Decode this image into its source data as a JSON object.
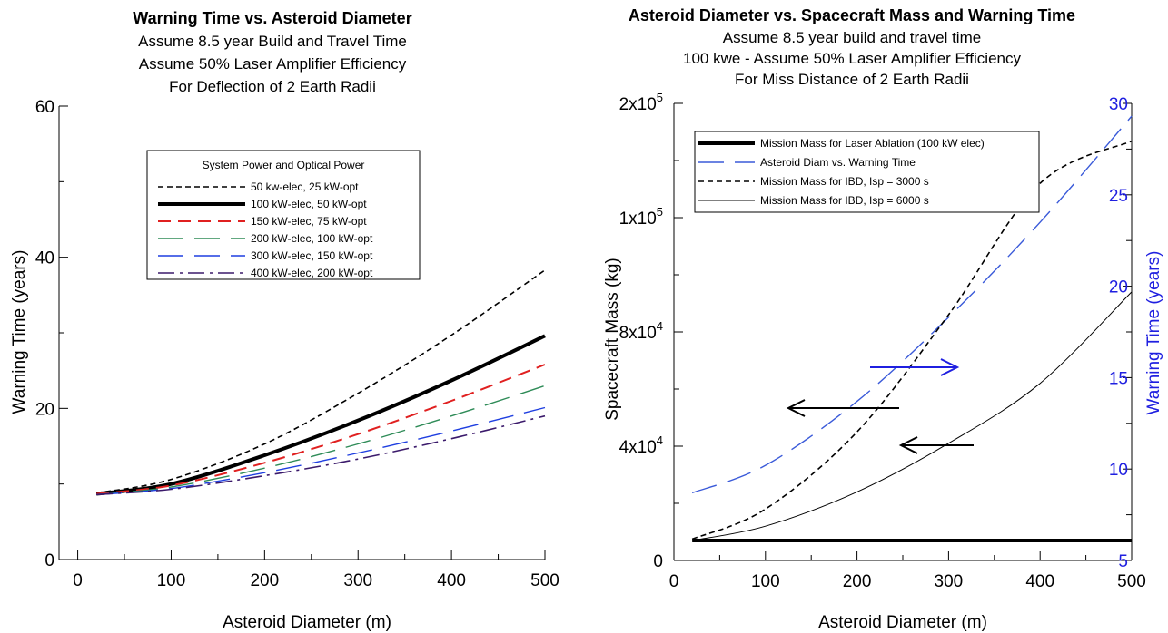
{
  "chart_data": [
    {
      "type": "line",
      "title": "Warning Time vs. Asteroid Diameter",
      "subtitles": [
        "Assume 8.5 year Build and Travel Time",
        "Assume 50% Laser Amplifier Efficiency",
        "For Deflection of 2 Earth Radii"
      ],
      "xlabel": "Asteroid Diameter (m)",
      "ylabel": "Warning Time (years)",
      "xlim": [
        -20,
        500
      ],
      "ylim": [
        0,
        60
      ],
      "xticks": [
        "0",
        "100",
        "200",
        "300",
        "400",
        "500"
      ],
      "yticks": [
        "0",
        "20",
        "40",
        "60"
      ],
      "legend_title": "System Power and Optical Power",
      "legend_position": "top-center",
      "series": [
        {
          "name": "50 kw-elec, 25 kW-opt",
          "color": "#000000",
          "style": "short-dash",
          "x": [
            20,
            100,
            200,
            300,
            400,
            500
          ],
          "y": [
            8.8,
            10.6,
            15.3,
            22.0,
            29.7,
            38.3
          ]
        },
        {
          "name": "100 kW-elec, 50 kW-opt",
          "color": "#000000",
          "style": "solid-thick",
          "x": [
            20,
            100,
            200,
            300,
            400,
            500
          ],
          "y": [
            8.7,
            10.0,
            13.8,
            18.4,
            23.7,
            29.6
          ]
        },
        {
          "name": "150 kW-elec, 75 kW-opt",
          "color": "#e02020",
          "style": "dash",
          "x": [
            20,
            100,
            200,
            300,
            400,
            500
          ],
          "y": [
            8.7,
            9.8,
            12.8,
            16.6,
            21.0,
            25.8
          ]
        },
        {
          "name": "200 kW-elec, 100 kW-opt",
          "color": "#2e8b57",
          "style": "long-dash",
          "x": [
            20,
            100,
            200,
            300,
            400,
            500
          ],
          "y": [
            8.6,
            9.6,
            12.1,
            15.3,
            19.0,
            23.0
          ]
        },
        {
          "name": "300 kW-elec, 150 kW-opt",
          "color": "#1f3fe0",
          "style": "long-dash",
          "x": [
            20,
            100,
            200,
            300,
            400,
            500
          ],
          "y": [
            8.6,
            9.4,
            11.5,
            14.1,
            17.0,
            20.1
          ]
        },
        {
          "name": "400 kW-elec, 200 kW-opt",
          "color": "#3b1a6b",
          "style": "dash-dot",
          "x": [
            20,
            100,
            200,
            300,
            400,
            500
          ],
          "y": [
            8.6,
            9.3,
            11.1,
            13.3,
            16.0,
            19.0
          ]
        }
      ]
    },
    {
      "type": "line",
      "title": "Asteroid Diameter vs. Spacecraft Mass and Warning Time",
      "subtitles": [
        "Assume 8.5 year build and travel time",
        "100 kwe - Assume 50% Laser Amplifier Efficiency",
        "For Miss Distance of 2 Earth Radii"
      ],
      "xlabel": "Asteroid Diameter (m)",
      "ylabel": "Spacecraft Mass (kg)",
      "y2label": "Warning Time (years)",
      "xlim": [
        0,
        500
      ],
      "ylim": [
        0,
        200000
      ],
      "y2lim": [
        5,
        30
      ],
      "xticks": [
        "0",
        "100",
        "200",
        "300",
        "400",
        "500"
      ],
      "yticks": [
        {
          "base": "0",
          "exp": ""
        },
        {
          "base": "4x10",
          "exp": "4"
        },
        {
          "base": "8x10",
          "exp": "4"
        },
        {
          "base": "1x10",
          "exp": "5"
        },
        {
          "base": "2x10",
          "exp": "5"
        }
      ],
      "y2ticks": [
        "5",
        "10",
        "15",
        "20",
        "25",
        "30"
      ],
      "y2_color": "#1f1fe0",
      "legend_position": "top-left",
      "series": [
        {
          "name": "Mission Mass for Laser Ablation (100 kW elec)",
          "color": "#000000",
          "style": "solid-thick",
          "axis": "left",
          "x": [
            20,
            500
          ],
          "y": [
            7000,
            7000
          ]
        },
        {
          "name": "Asteroid Diam vs. Warning Time",
          "color": "#3a5ad9",
          "style": "long-dash",
          "axis": "right",
          "x": [
            20,
            100,
            200,
            300,
            400,
            500
          ],
          "y": [
            8.7,
            10.2,
            13.7,
            18.3,
            23.5,
            29.3
          ]
        },
        {
          "name": "Mission Mass for IBD, Isp = 3000 s",
          "color": "#000000",
          "style": "short-dash",
          "axis": "left",
          "x": [
            20,
            100,
            200,
            300,
            400,
            500
          ],
          "y": [
            7500,
            18000,
            45000,
            83000,
            130000,
            167000
          ]
        },
        {
          "name": "Mission Mass for IBD, Isp = 6000 s",
          "color": "#000000",
          "style": "solid-thin",
          "axis": "left",
          "x": [
            20,
            100,
            200,
            300,
            400,
            500
          ],
          "y": [
            7000,
            12000,
            24000,
            41000,
            62000,
            87000
          ]
        }
      ]
    }
  ]
}
